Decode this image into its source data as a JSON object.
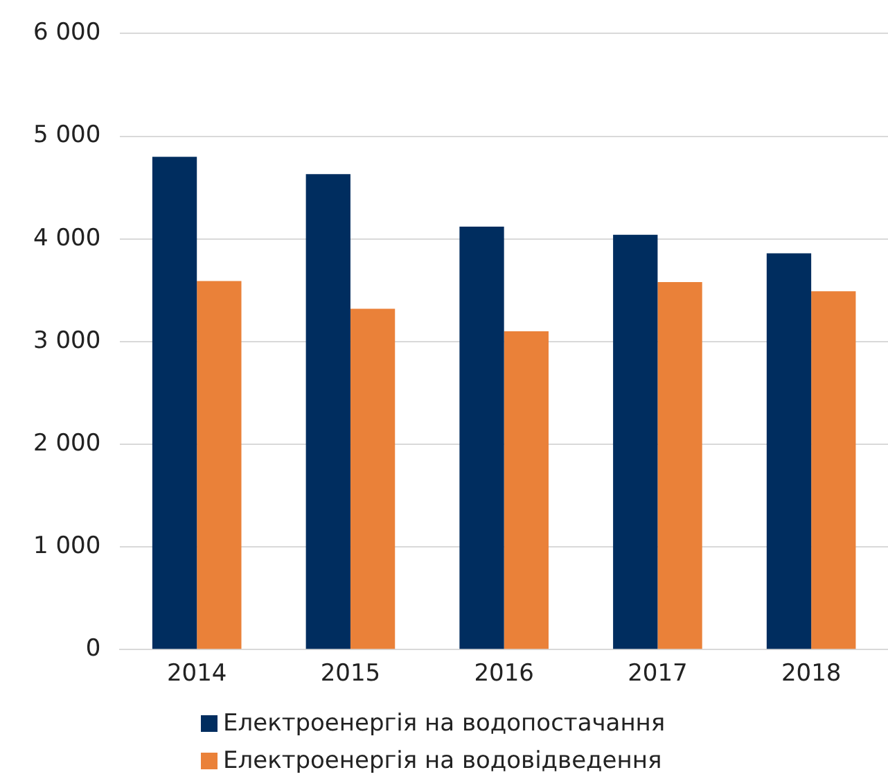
{
  "chart_data": {
    "type": "bar",
    "categories": [
      "2014",
      "2015",
      "2016",
      "2017",
      "2018"
    ],
    "series": [
      {
        "name": "Електроенергія на водопостачання",
        "color": "#002d5f",
        "values": [
          4800,
          4630,
          4120,
          4040,
          3860
        ]
      },
      {
        "name": "Електроенергія на водовідведення",
        "color": "#ea8139",
        "values": [
          3590,
          3320,
          3100,
          3580,
          3490
        ]
      }
    ],
    "ylim": [
      0,
      6000
    ],
    "yticks": [
      {
        "value": 0,
        "label": "0"
      },
      {
        "value": 1000,
        "label": "1 000"
      },
      {
        "value": 2000,
        "label": "2 000"
      },
      {
        "value": 3000,
        "label": "3 000"
      },
      {
        "value": 4000,
        "label": "4 000"
      },
      {
        "value": 5000,
        "label": "5 000"
      },
      {
        "value": 6000,
        "label": "6 000"
      }
    ],
    "grid": "y",
    "legend": "bottom"
  }
}
